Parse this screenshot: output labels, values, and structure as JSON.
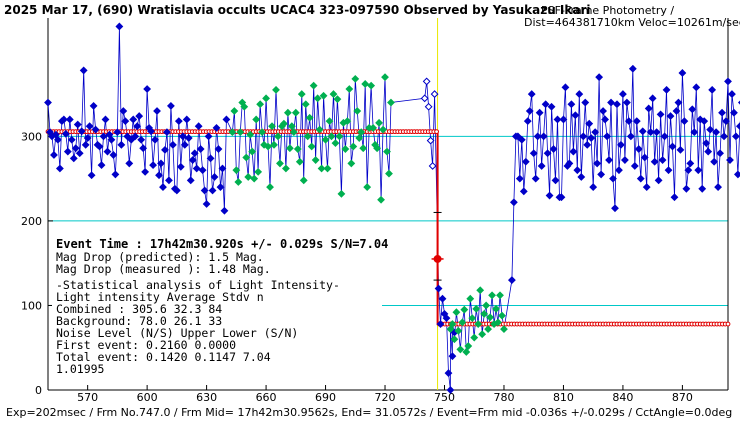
{
  "chart_data": {
    "type": "scatter",
    "title": "2025 Mar 17, (690) Wratislavia occults UCAC4 323-097590 Observed by Yasukazu Ikari",
    "subtitle": "PSF-Frame Photometry /",
    "subtitle2": "Dist=464381710km Veloc=10261m/sec",
    "footer": "Exp=202msec / Frm No.747.0 / Frm Mid= 17h42m30.9562s, End= 31.0572s / Event=Frm mid -0.036s +/-0.029s / CctAngle=0.0deg",
    "xlim": [
      550,
      893
    ],
    "ylim": [
      0,
      440
    ],
    "x_ticks": [
      570,
      600,
      630,
      660,
      690,
      720,
      750,
      780,
      810,
      840,
      870
    ],
    "y_ticks": [
      0,
      100,
      200,
      300
    ],
    "grid_lines_y": [
      100,
      200,
      300
    ],
    "event_line_x": 746.5,
    "model": {
      "x": [
        550,
        746.5,
        746.5,
        893
      ],
      "y": [
        305.6,
        305.6,
        78.0,
        78.0
      ]
    },
    "event_marker": {
      "x": 746.5,
      "y": 155,
      "err_low": 130,
      "err_high": 210
    },
    "colors": {
      "blue": "#0000c8",
      "green": "#00b050",
      "cyan": "#00c8c8",
      "red": "#e00000",
      "event_line": "#e8e800",
      "axis": "#000000"
    },
    "series": [
      {
        "name": "Before event",
        "x_start": 550,
        "color": "blue",
        "values": [
          340,
          305,
          300,
          278,
          302,
          296,
          262,
          318,
          320,
          303,
          282,
          320,
          296,
          274,
          286,
          314,
          280,
          306,
          378,
          290,
          298,
          312,
          254,
          336,
          308,
          290,
          288,
          266,
          300,
          320,
          282,
          302,
          296,
          278,
          255,
          305,
          430,
          290,
          330,
          318,
          300,
          268,
          296,
          320,
          300,
          312,
          324,
          296,
          286,
          258,
          356,
          310,
          306,
          266,
          296,
          330,
          254,
          268,
          240,
          284,
          305,
          248,
          336,
          290,
          238,
          236,
          318,
          264,
          300,
          290,
          320,
          298,
          248,
          272,
          280,
          262,
          312,
          285,
          260,
          236,
          220,
          300,
          274,
          236,
          252,
          310,
          285,
          240,
          262,
          212,
          320
        ]
      },
      {
        "name": "Before event (green)",
        "x_start": 643,
        "color": "green",
        "values": [
          305,
          330,
          260,
          246,
          305,
          340,
          335,
          275,
          252,
          302,
          282,
          250,
          320,
          258,
          338,
          305,
          290,
          345,
          288,
          240,
          312,
          290,
          355,
          300,
          268,
          312,
          315,
          262,
          328,
          286,
          312,
          305,
          328,
          285,
          270,
          350,
          248,
          338,
          300,
          322,
          288,
          360,
          272,
          345,
          308,
          262,
          348,
          296,
          262,
          318,
          300,
          350,
          292,
          344,
          300,
          232,
          316,
          285,
          318,
          356,
          268,
          288,
          368,
          330,
          298,
          305,
          286,
          362,
          240,
          310,
          360,
          310,
          290,
          286,
          316,
          225,
          308,
          370,
          282,
          256,
          340
        ]
      },
      {
        "name": "Before event (late)",
        "x_start": 740,
        "color": "blue",
        "values": [
          345,
          365,
          335,
          295,
          265,
          350
        ]
      },
      {
        "name": "During event",
        "x_start": 747,
        "color": "blue",
        "values": [
          120,
          78,
          108,
          90,
          85,
          20,
          0,
          40,
          68
        ]
      },
      {
        "name": "During event (green)",
        "x_start": 753,
        "color": "green",
        "values": [
          72,
          78,
          60,
          92,
          70,
          48,
          80,
          95,
          45,
          52,
          108,
          85,
          62,
          96,
          78,
          118,
          66,
          90,
          100,
          72,
          86,
          112,
          78,
          96,
          80,
          112,
          88,
          72
        ]
      },
      {
        "name": "After event",
        "x_start": 784,
        "color": "blue",
        "values": [
          130,
          222,
          300,
          300,
          250,
          296,
          235,
          270,
          318,
          330,
          350,
          280,
          250,
          300,
          328,
          265,
          300,
          338,
          280,
          230,
          335,
          285,
          248,
          320,
          228,
          228,
          320,
          358,
          265,
          268,
          338,
          282,
          325,
          260,
          350,
          252,
          300,
          340,
          290,
          315,
          298,
          240,
          305,
          268,
          370,
          255,
          330,
          320,
          300,
          272,
          340,
          250,
          215,
          338,
          260,
          290,
          350,
          272,
          340,
          318,
          300,
          380,
          265,
          318,
          285,
          250,
          306,
          275,
          240,
          333,
          305,
          345,
          270,
          305,
          248,
          326,
          272,
          300,
          355,
          260,
          324,
          288,
          228,
          330,
          340,
          284,
          375,
          318,
          238,
          260,
          268,
          332,
          305,
          358,
          260,
          320,
          238,
          318,
          292,
          282,
          308,
          355,
          270,
          305,
          240,
          280,
          328,
          300,
          318,
          365,
          272,
          350,
          328,
          300,
          255,
          312,
          340,
          286,
          240,
          306,
          348,
          262,
          330,
          370,
          290,
          315,
          268,
          236,
          320
        ]
      }
    ],
    "stats_panel": {
      "event_line": "Event Time : 17h42m30.920s  +/- 0.029s  S/N=7.04",
      "lines": [
        "Mag Drop (predicted): 1.5   Mag.",
        "Mag Drop (measured ): 1.48  Mag.",
        "-Statistical analysis of Light Intensity-",
        "Light intensity   Average   Stdv     n",
        "  Combined  :      305.6    32.3    84",
        "  Background:       78.0    26.1    33",
        "Noise Level (N/S)  Upper    Lower   (S/N)",
        "   First event:    0.2160   0.0000",
        "   Total event:    0.1420   0.1147   7.04",
        "1.01995"
      ]
    }
  }
}
